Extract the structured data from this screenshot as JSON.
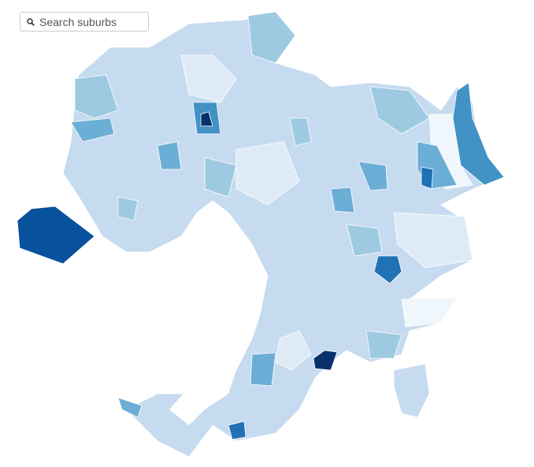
{
  "search": {
    "placeholder": "Search suburbs"
  }
}
